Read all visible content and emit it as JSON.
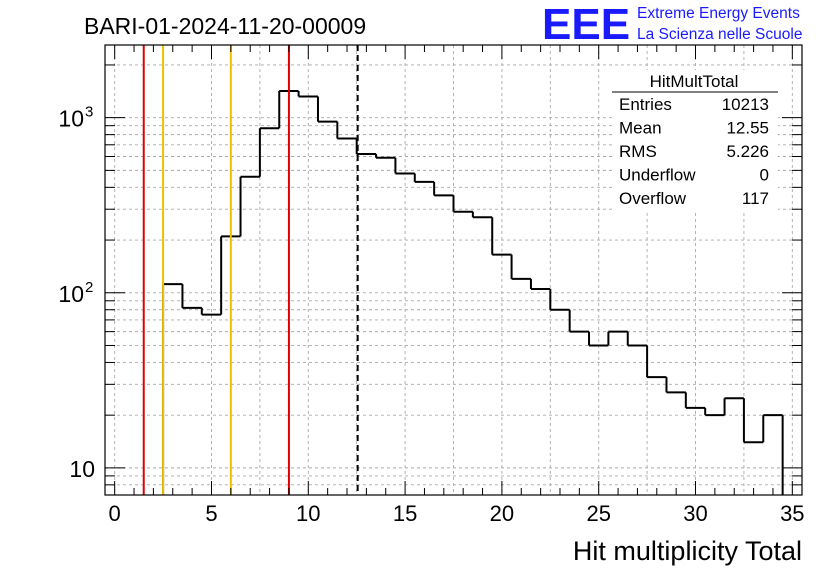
{
  "header": {
    "run_title": "BARI-01-2024-11-20-00009",
    "logo_text": "EEE",
    "logo_line1": "Extreme Energy Events",
    "logo_line2": "La Scienza nelle Scuole",
    "logo_color": "#1a1aff"
  },
  "stats": {
    "name": "HitMultTotal",
    "rows": [
      {
        "label": "Entries",
        "value": "10213"
      },
      {
        "label": "Mean",
        "value": "12.55"
      },
      {
        "label": "RMS",
        "value": "5.226"
      },
      {
        "label": "Underflow",
        "value": "0"
      },
      {
        "label": "Overflow",
        "value": "117"
      }
    ]
  },
  "chart_data": {
    "type": "histogram",
    "xlabel": "Hit multiplicity Total",
    "xlim": [
      -0.5,
      35.5
    ],
    "ylim": [
      7,
      2600
    ],
    "ylog": true,
    "grid": true,
    "x_ticks": [
      0,
      5,
      10,
      15,
      20,
      25,
      30,
      35
    ],
    "x_tick_labels": [
      "0",
      "5",
      "10",
      "15",
      "20",
      "25",
      "30",
      "35"
    ],
    "y_ticks": [
      10,
      100,
      1000
    ],
    "y_tick_labels": [
      {
        "base": "10",
        "exp": ""
      },
      {
        "base": "10",
        "exp": "2"
      },
      {
        "base": "10",
        "exp": "3"
      }
    ],
    "bin_low_edges": [
      -0.5,
      0.5,
      1.5,
      2.5,
      3.5,
      4.5,
      5.5,
      6.5,
      7.5,
      8.5,
      9.5,
      10.5,
      11.5,
      12.5,
      13.5,
      14.5,
      15.5,
      16.5,
      17.5,
      18.5,
      19.5,
      20.5,
      21.5,
      22.5,
      23.5,
      24.5,
      25.5,
      26.5,
      27.5,
      28.5,
      29.5,
      30.5,
      31.5,
      32.5,
      33.5,
      34.5
    ],
    "bin_width": 1,
    "values": [
      0,
      0,
      0,
      112,
      82,
      75,
      210,
      460,
      870,
      1420,
      1320,
      950,
      760,
      620,
      590,
      480,
      430,
      360,
      290,
      270,
      165,
      120,
      105,
      80,
      60,
      50,
      60,
      50,
      33,
      27,
      22,
      20,
      25,
      14,
      20,
      0
    ],
    "vertical_lines": [
      {
        "x": 1.5,
        "color": "#e00000",
        "style": "solid"
      },
      {
        "x": 2.5,
        "color": "#f0c000",
        "style": "solid"
      },
      {
        "x": 6.0,
        "color": "#f0c000",
        "style": "solid"
      },
      {
        "x": 9.0,
        "color": "#e00000",
        "style": "solid"
      },
      {
        "x": 12.55,
        "color": "#000000",
        "style": "dashed"
      }
    ]
  }
}
